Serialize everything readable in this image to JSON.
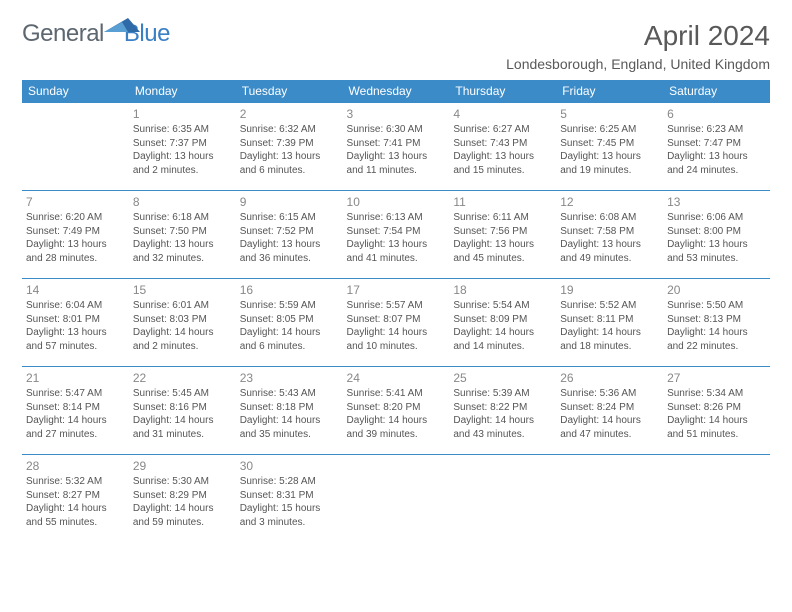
{
  "logo": {
    "part1": "General",
    "part2": "Blue"
  },
  "title": "April 2024",
  "location": "Londesborough, England, United Kingdom",
  "colors": {
    "header_bg": "#3b8bc9",
    "header_text": "#ffffff",
    "border": "#3b8bc9",
    "logo_gray": "#5d6770",
    "logo_blue": "#3b7fc4",
    "title_color": "#595959",
    "cell_text": "#555555",
    "daynum": "#888888"
  },
  "weekdays": [
    "Sunday",
    "Monday",
    "Tuesday",
    "Wednesday",
    "Thursday",
    "Friday",
    "Saturday"
  ],
  "weeks": [
    [
      null,
      {
        "d": "1",
        "sr": "6:35 AM",
        "ss": "7:37 PM",
        "dl": "13 hours and 2 minutes."
      },
      {
        "d": "2",
        "sr": "6:32 AM",
        "ss": "7:39 PM",
        "dl": "13 hours and 6 minutes."
      },
      {
        "d": "3",
        "sr": "6:30 AM",
        "ss": "7:41 PM",
        "dl": "13 hours and 11 minutes."
      },
      {
        "d": "4",
        "sr": "6:27 AM",
        "ss": "7:43 PM",
        "dl": "13 hours and 15 minutes."
      },
      {
        "d": "5",
        "sr": "6:25 AM",
        "ss": "7:45 PM",
        "dl": "13 hours and 19 minutes."
      },
      {
        "d": "6",
        "sr": "6:23 AM",
        "ss": "7:47 PM",
        "dl": "13 hours and 24 minutes."
      }
    ],
    [
      {
        "d": "7",
        "sr": "6:20 AM",
        "ss": "7:49 PM",
        "dl": "13 hours and 28 minutes."
      },
      {
        "d": "8",
        "sr": "6:18 AM",
        "ss": "7:50 PM",
        "dl": "13 hours and 32 minutes."
      },
      {
        "d": "9",
        "sr": "6:15 AM",
        "ss": "7:52 PM",
        "dl": "13 hours and 36 minutes."
      },
      {
        "d": "10",
        "sr": "6:13 AM",
        "ss": "7:54 PM",
        "dl": "13 hours and 41 minutes."
      },
      {
        "d": "11",
        "sr": "6:11 AM",
        "ss": "7:56 PM",
        "dl": "13 hours and 45 minutes."
      },
      {
        "d": "12",
        "sr": "6:08 AM",
        "ss": "7:58 PM",
        "dl": "13 hours and 49 minutes."
      },
      {
        "d": "13",
        "sr": "6:06 AM",
        "ss": "8:00 PM",
        "dl": "13 hours and 53 minutes."
      }
    ],
    [
      {
        "d": "14",
        "sr": "6:04 AM",
        "ss": "8:01 PM",
        "dl": "13 hours and 57 minutes."
      },
      {
        "d": "15",
        "sr": "6:01 AM",
        "ss": "8:03 PM",
        "dl": "14 hours and 2 minutes."
      },
      {
        "d": "16",
        "sr": "5:59 AM",
        "ss": "8:05 PM",
        "dl": "14 hours and 6 minutes."
      },
      {
        "d": "17",
        "sr": "5:57 AM",
        "ss": "8:07 PM",
        "dl": "14 hours and 10 minutes."
      },
      {
        "d": "18",
        "sr": "5:54 AM",
        "ss": "8:09 PM",
        "dl": "14 hours and 14 minutes."
      },
      {
        "d": "19",
        "sr": "5:52 AM",
        "ss": "8:11 PM",
        "dl": "14 hours and 18 minutes."
      },
      {
        "d": "20",
        "sr": "5:50 AM",
        "ss": "8:13 PM",
        "dl": "14 hours and 22 minutes."
      }
    ],
    [
      {
        "d": "21",
        "sr": "5:47 AM",
        "ss": "8:14 PM",
        "dl": "14 hours and 27 minutes."
      },
      {
        "d": "22",
        "sr": "5:45 AM",
        "ss": "8:16 PM",
        "dl": "14 hours and 31 minutes."
      },
      {
        "d": "23",
        "sr": "5:43 AM",
        "ss": "8:18 PM",
        "dl": "14 hours and 35 minutes."
      },
      {
        "d": "24",
        "sr": "5:41 AM",
        "ss": "8:20 PM",
        "dl": "14 hours and 39 minutes."
      },
      {
        "d": "25",
        "sr": "5:39 AM",
        "ss": "8:22 PM",
        "dl": "14 hours and 43 minutes."
      },
      {
        "d": "26",
        "sr": "5:36 AM",
        "ss": "8:24 PM",
        "dl": "14 hours and 47 minutes."
      },
      {
        "d": "27",
        "sr": "5:34 AM",
        "ss": "8:26 PM",
        "dl": "14 hours and 51 minutes."
      }
    ],
    [
      {
        "d": "28",
        "sr": "5:32 AM",
        "ss": "8:27 PM",
        "dl": "14 hours and 55 minutes."
      },
      {
        "d": "29",
        "sr": "5:30 AM",
        "ss": "8:29 PM",
        "dl": "14 hours and 59 minutes."
      },
      {
        "d": "30",
        "sr": "5:28 AM",
        "ss": "8:31 PM",
        "dl": "15 hours and 3 minutes."
      },
      null,
      null,
      null,
      null
    ]
  ],
  "labels": {
    "sunrise": "Sunrise:",
    "sunset": "Sunset:",
    "daylight": "Daylight:"
  }
}
